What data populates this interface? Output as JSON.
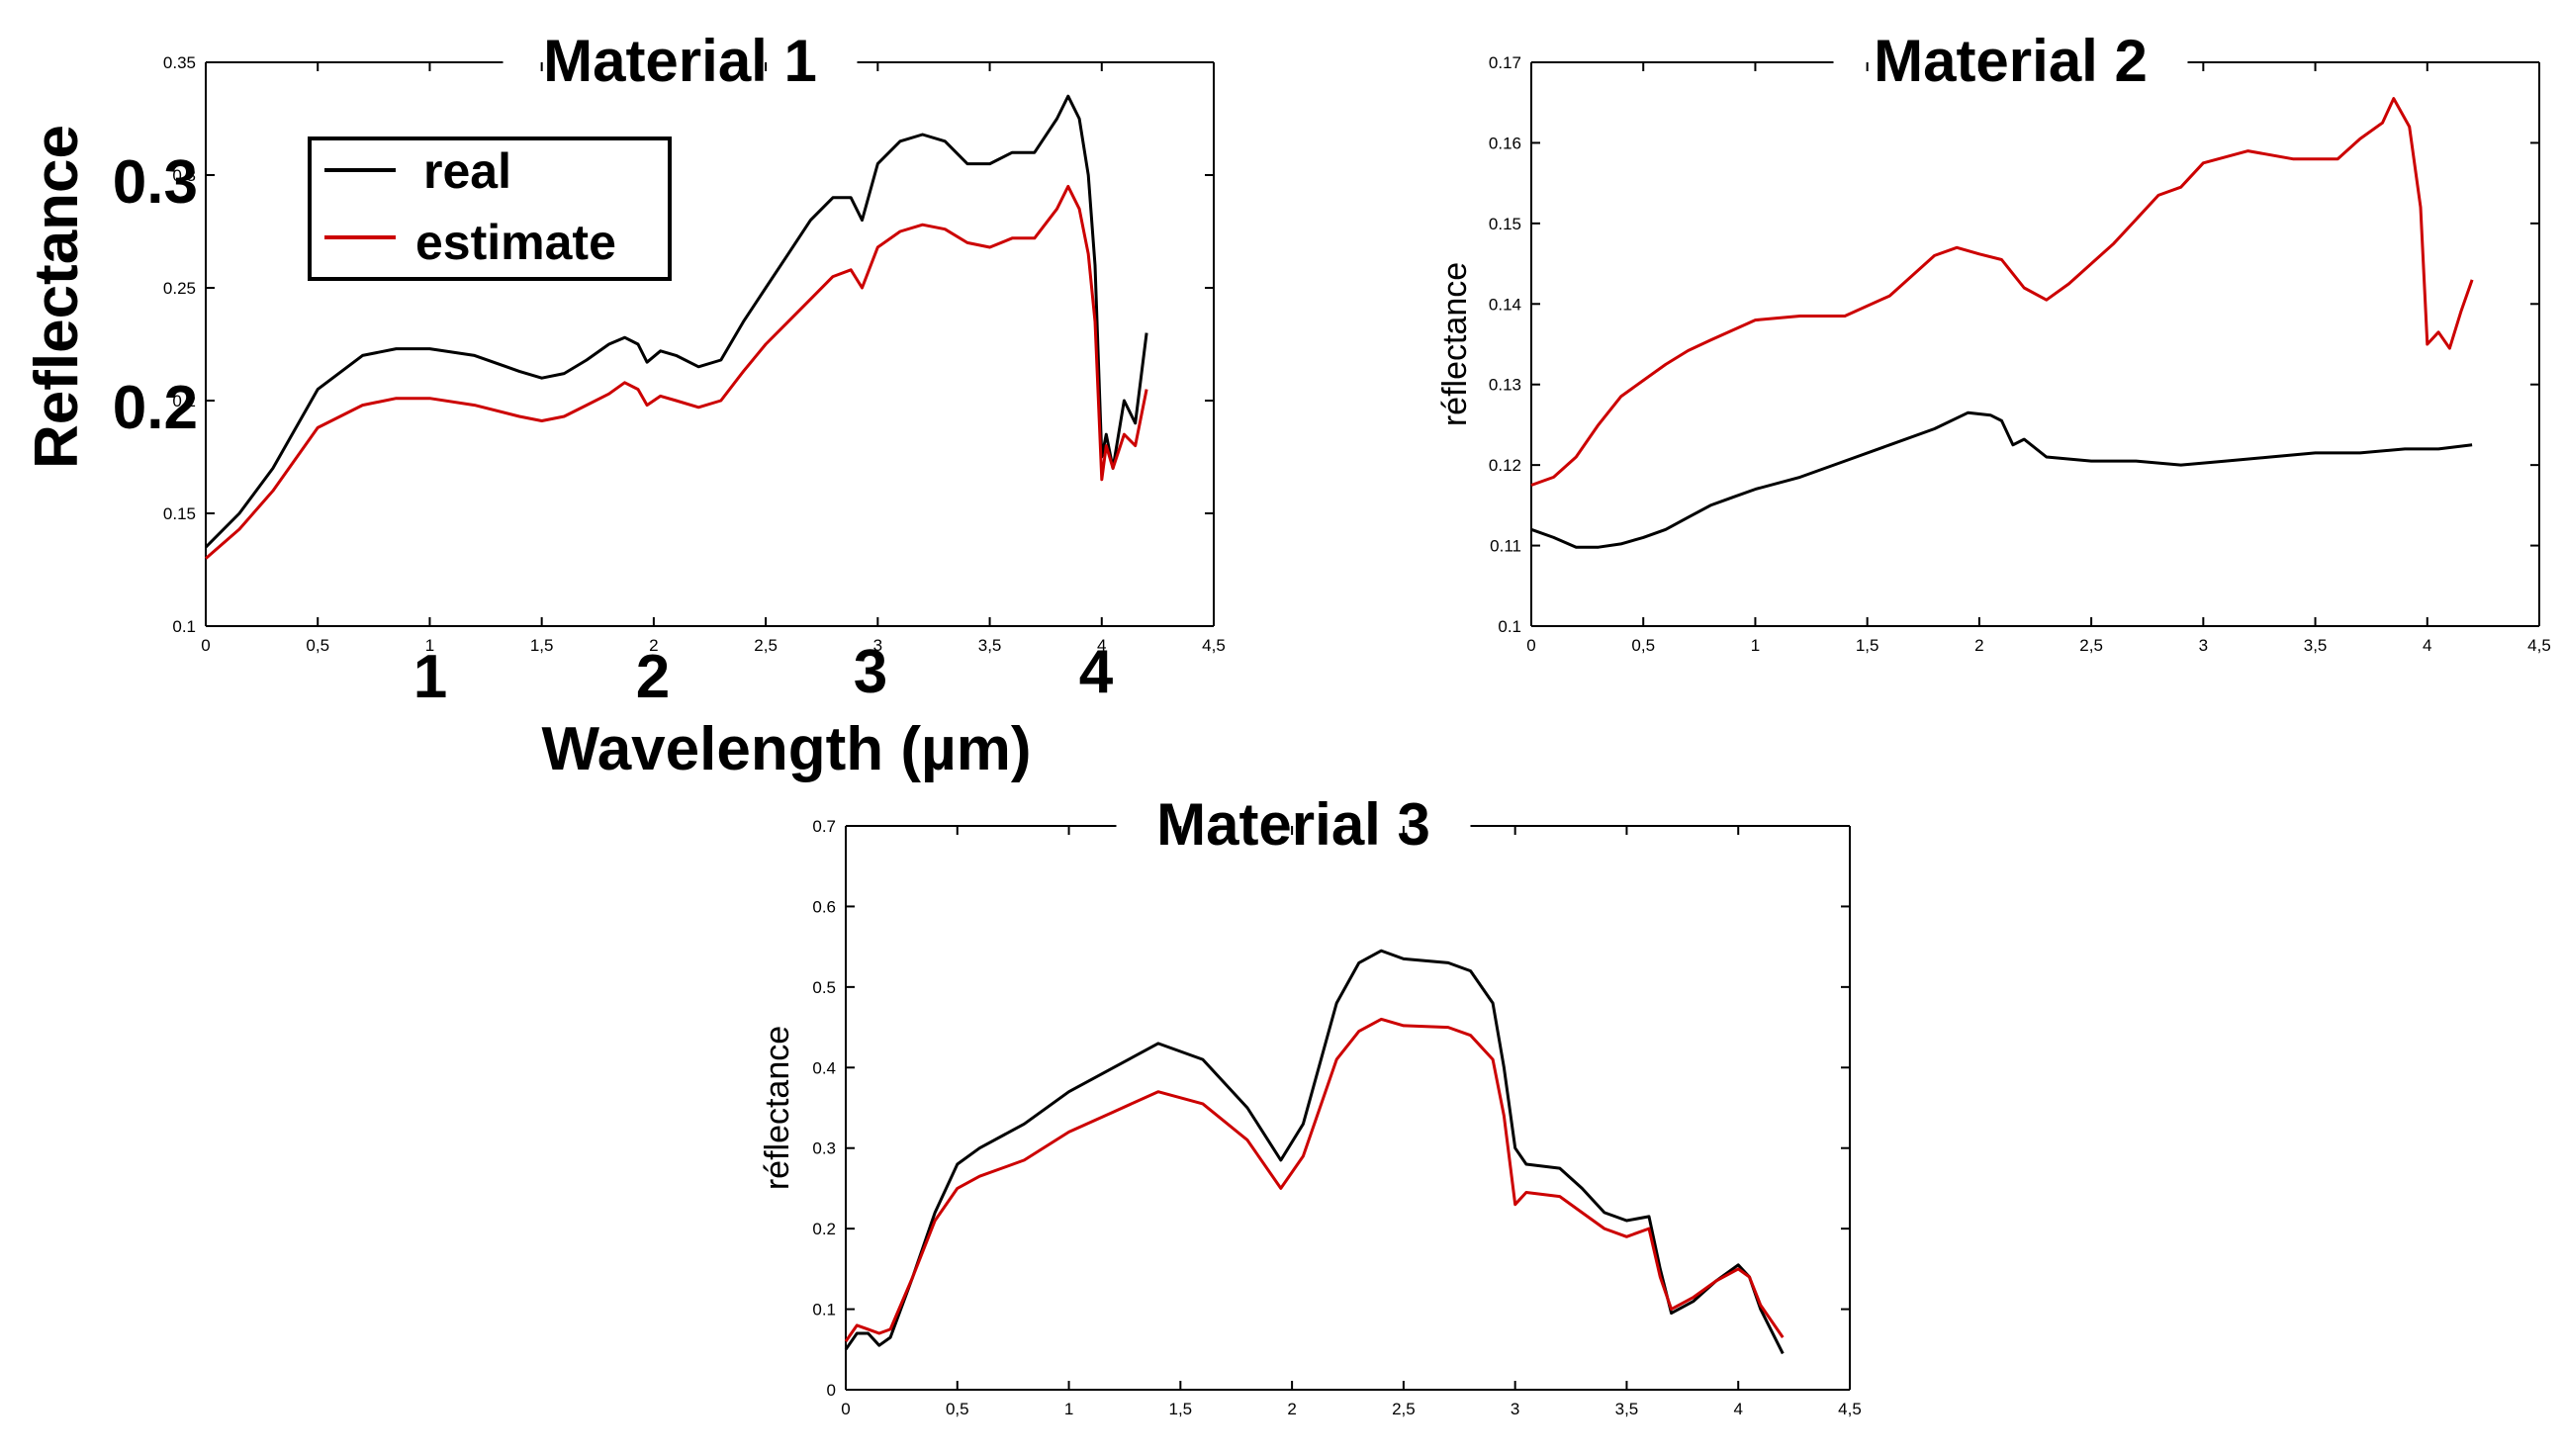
{
  "colors": {
    "real": "#000000",
    "estimate": "#cc0000"
  },
  "annotations": {
    "big_y_ticks": [
      "0.3",
      "0.2"
    ],
    "big_x_ticks": [
      "1",
      "2",
      "3",
      "4"
    ],
    "big_y_label": "Reflectance",
    "big_x_label": "Wavelength (µm)"
  },
  "legend": {
    "real": "real",
    "estimate": "estimate"
  },
  "chart_data": [
    {
      "type": "line",
      "title": "Material 1",
      "xlabel": "",
      "ylabel": "",
      "xlim": [
        0,
        4.5
      ],
      "ylim": [
        0.1,
        0.35
      ],
      "xticks": [
        "0",
        "0,5",
        "1",
        "1,5",
        "2",
        "2,5",
        "3",
        "3,5",
        "4",
        "4,5"
      ],
      "yticks": [
        "0.1",
        "0.15",
        "0.2",
        "0.25",
        "0.3",
        "0.35"
      ],
      "series": [
        {
          "name": "real",
          "x": [
            0,
            0.15,
            0.3,
            0.5,
            0.7,
            0.85,
            1.0,
            1.2,
            1.4,
            1.5,
            1.6,
            1.7,
            1.8,
            1.87,
            1.93,
            1.97,
            2.03,
            2.1,
            2.2,
            2.3,
            2.4,
            2.5,
            2.6,
            2.7,
            2.8,
            2.88,
            2.93,
            3.0,
            3.1,
            3.2,
            3.3,
            3.4,
            3.5,
            3.6,
            3.7,
            3.8,
            3.85,
            3.9,
            3.94,
            3.97,
            4.0,
            4.02,
            4.05,
            4.1,
            4.15,
            4.2
          ],
          "values": [
            0.135,
            0.15,
            0.17,
            0.205,
            0.22,
            0.223,
            0.223,
            0.22,
            0.213,
            0.21,
            0.212,
            0.218,
            0.225,
            0.228,
            0.225,
            0.217,
            0.222,
            0.22,
            0.215,
            0.218,
            0.235,
            0.25,
            0.265,
            0.28,
            0.29,
            0.29,
            0.28,
            0.305,
            0.315,
            0.318,
            0.315,
            0.305,
            0.305,
            0.31,
            0.31,
            0.325,
            0.335,
            0.325,
            0.3,
            0.26,
            0.175,
            0.185,
            0.17,
            0.2,
            0.19,
            0.23
          ]
        },
        {
          "name": "estimate",
          "x": [
            0,
            0.15,
            0.3,
            0.5,
            0.7,
            0.85,
            1.0,
            1.2,
            1.4,
            1.5,
            1.6,
            1.7,
            1.8,
            1.87,
            1.93,
            1.97,
            2.03,
            2.1,
            2.2,
            2.3,
            2.4,
            2.5,
            2.6,
            2.7,
            2.8,
            2.88,
            2.93,
            3.0,
            3.1,
            3.2,
            3.3,
            3.4,
            3.5,
            3.6,
            3.7,
            3.8,
            3.85,
            3.9,
            3.94,
            3.97,
            4.0,
            4.02,
            4.05,
            4.1,
            4.15,
            4.2
          ],
          "values": [
            0.13,
            0.143,
            0.16,
            0.188,
            0.198,
            0.201,
            0.201,
            0.198,
            0.193,
            0.191,
            0.193,
            0.198,
            0.203,
            0.208,
            0.205,
            0.198,
            0.202,
            0.2,
            0.197,
            0.2,
            0.213,
            0.225,
            0.235,
            0.245,
            0.255,
            0.258,
            0.25,
            0.268,
            0.275,
            0.278,
            0.276,
            0.27,
            0.268,
            0.272,
            0.272,
            0.285,
            0.295,
            0.285,
            0.265,
            0.235,
            0.165,
            0.18,
            0.17,
            0.185,
            0.18,
            0.205
          ]
        }
      ]
    },
    {
      "type": "line",
      "title": "Material 2",
      "xlabel": "",
      "ylabel": "réflectance",
      "xlim": [
        0,
        4.5
      ],
      "ylim": [
        0.1,
        0.17
      ],
      "xticks": [
        "0",
        "0,5",
        "1",
        "1,5",
        "2",
        "2,5",
        "3",
        "3,5",
        "4",
        "4,5"
      ],
      "yticks": [
        "0.1",
        "0.11",
        "0.12",
        "0.13",
        "0.14",
        "0.15",
        "0.16",
        "0.17"
      ],
      "series": [
        {
          "name": "real",
          "x": [
            0,
            0.1,
            0.2,
            0.3,
            0.4,
            0.5,
            0.6,
            0.7,
            0.8,
            0.9,
            1.0,
            1.2,
            1.4,
            1.6,
            1.8,
            1.95,
            2.05,
            2.1,
            2.15,
            2.2,
            2.3,
            2.5,
            2.7,
            2.9,
            3.1,
            3.3,
            3.5,
            3.7,
            3.9,
            4.05,
            4.2
          ],
          "values": [
            0.112,
            0.111,
            0.1098,
            0.1098,
            0.1102,
            0.111,
            0.112,
            0.1135,
            0.115,
            0.116,
            0.117,
            0.1185,
            0.1205,
            0.1225,
            0.1245,
            0.1265,
            0.1262,
            0.1255,
            0.1225,
            0.1232,
            0.121,
            0.1205,
            0.1205,
            0.12,
            0.1205,
            0.121,
            0.1215,
            0.1215,
            0.122,
            0.122,
            0.1225
          ]
        },
        {
          "name": "estimate",
          "x": [
            0,
            0.1,
            0.2,
            0.3,
            0.4,
            0.5,
            0.6,
            0.7,
            0.8,
            1.0,
            1.2,
            1.4,
            1.6,
            1.8,
            1.9,
            2.0,
            2.1,
            2.2,
            2.3,
            2.4,
            2.6,
            2.8,
            2.9,
            3.0,
            3.2,
            3.4,
            3.6,
            3.7,
            3.8,
            3.85,
            3.92,
            3.97,
            4.0,
            4.05,
            4.1,
            4.15,
            4.2
          ],
          "values": [
            0.1175,
            0.1185,
            0.121,
            0.125,
            0.1285,
            0.1305,
            0.1325,
            0.1342,
            0.1355,
            0.138,
            0.1385,
            0.1385,
            0.141,
            0.146,
            0.147,
            0.1462,
            0.1455,
            0.142,
            0.1405,
            0.1425,
            0.1475,
            0.1535,
            0.1545,
            0.1575,
            0.159,
            0.158,
            0.158,
            0.1605,
            0.1625,
            0.1655,
            0.162,
            0.152,
            0.135,
            0.1365,
            0.1345,
            0.139,
            0.143
          ]
        }
      ]
    },
    {
      "type": "line",
      "title": "Material 3",
      "xlabel": "",
      "ylabel": "réflectance",
      "xlim": [
        0,
        4.5
      ],
      "ylim": [
        0,
        0.7
      ],
      "xticks": [
        "0",
        "0,5",
        "1",
        "1,5",
        "2",
        "2,5",
        "3",
        "3,5",
        "4",
        "4,5"
      ],
      "yticks": [
        "0",
        "0.1",
        "0.2",
        "0.3",
        "0.4",
        "0.5",
        "0.6",
        "0.7"
      ],
      "series": [
        {
          "name": "real",
          "x": [
            0,
            0.05,
            0.1,
            0.15,
            0.2,
            0.3,
            0.4,
            0.5,
            0.6,
            0.8,
            1.0,
            1.2,
            1.4,
            1.6,
            1.8,
            1.95,
            2.05,
            2.2,
            2.3,
            2.4,
            2.5,
            2.7,
            2.8,
            2.9,
            2.95,
            3.0,
            3.05,
            3.2,
            3.3,
            3.4,
            3.5,
            3.6,
            3.65,
            3.7,
            3.8,
            3.9,
            4.0,
            4.05,
            4.1,
            4.2
          ],
          "values": [
            0.05,
            0.07,
            0.07,
            0.055,
            0.065,
            0.14,
            0.22,
            0.28,
            0.3,
            0.33,
            0.37,
            0.4,
            0.43,
            0.41,
            0.35,
            0.285,
            0.33,
            0.48,
            0.53,
            0.545,
            0.535,
            0.53,
            0.52,
            0.48,
            0.4,
            0.3,
            0.28,
            0.275,
            0.25,
            0.22,
            0.21,
            0.215,
            0.15,
            0.095,
            0.11,
            0.135,
            0.155,
            0.14,
            0.1,
            0.045
          ]
        },
        {
          "name": "estimate",
          "x": [
            0,
            0.05,
            0.1,
            0.15,
            0.2,
            0.3,
            0.4,
            0.5,
            0.6,
            0.8,
            1.0,
            1.2,
            1.4,
            1.6,
            1.8,
            1.95,
            2.05,
            2.2,
            2.3,
            2.4,
            2.5,
            2.7,
            2.8,
            2.9,
            2.95,
            3.0,
            3.05,
            3.2,
            3.3,
            3.4,
            3.5,
            3.6,
            3.65,
            3.7,
            3.8,
            3.9,
            4.0,
            4.05,
            4.1,
            4.2
          ],
          "values": [
            0.06,
            0.08,
            0.075,
            0.07,
            0.075,
            0.14,
            0.21,
            0.25,
            0.265,
            0.285,
            0.32,
            0.345,
            0.37,
            0.355,
            0.31,
            0.25,
            0.29,
            0.41,
            0.445,
            0.46,
            0.452,
            0.45,
            0.44,
            0.41,
            0.34,
            0.23,
            0.245,
            0.24,
            0.22,
            0.2,
            0.19,
            0.2,
            0.14,
            0.1,
            0.115,
            0.135,
            0.15,
            0.14,
            0.105,
            0.065
          ]
        }
      ]
    }
  ]
}
